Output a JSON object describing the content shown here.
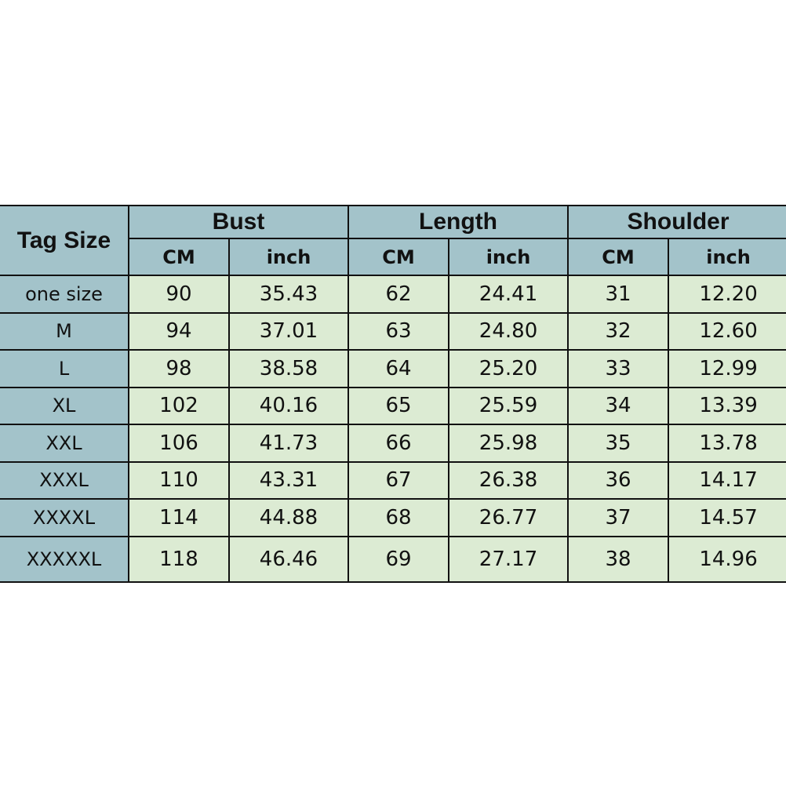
{
  "header": {
    "tag_size": "Tag Size",
    "groups": [
      "Bust",
      "Length",
      "Shoulder"
    ],
    "units": [
      "CM",
      "inch",
      "CM",
      "inch",
      "CM",
      "inch"
    ]
  },
  "rows": [
    [
      "one size",
      "90",
      "35.43",
      "62",
      "24.41",
      "31",
      "12.20"
    ],
    [
      "M",
      "94",
      "37.01",
      "63",
      "24.80",
      "32",
      "12.60"
    ],
    [
      "L",
      "98",
      "38.58",
      "64",
      "25.20",
      "33",
      "12.99"
    ],
    [
      "XL",
      "102",
      "40.16",
      "65",
      "25.59",
      "34",
      "13.39"
    ],
    [
      "XXL",
      "106",
      "41.73",
      "66",
      "25.98",
      "35",
      "13.78"
    ],
    [
      "XXXL",
      "110",
      "43.31",
      "67",
      "26.38",
      "36",
      "14.17"
    ],
    [
      "XXXXL",
      "114",
      "44.88",
      "68",
      "26.77",
      "37",
      "14.57"
    ],
    [
      "XXXXXL",
      "118",
      "46.46",
      "69",
      "27.17",
      "38",
      "14.96"
    ]
  ],
  "colors": {
    "header": "#a3c3ca",
    "body": "#dcebd3",
    "border": "#111111"
  }
}
